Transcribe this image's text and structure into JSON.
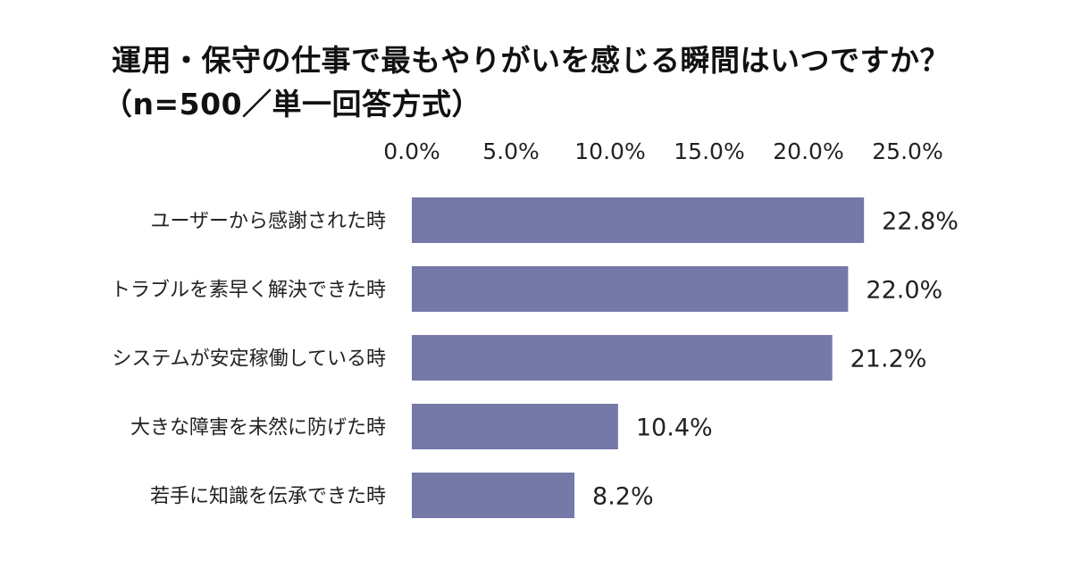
{
  "chart_data": {
    "type": "bar",
    "orientation": "horizontal",
    "title": "運用・保守の仕事で最もやりがいを感じる瞬間はいつですか？",
    "subtitle": "（n=500／単一回答方式）",
    "categories": [
      "ユーザーから感謝された時",
      "トラブルを素早く解決できた時",
      "システムが安定稼働している時",
      "大きな障害を未然に防げた時",
      "若手に知識を伝承できた時"
    ],
    "values": [
      22.8,
      22.0,
      21.2,
      10.4,
      8.2
    ],
    "data_labels": [
      "22.8%",
      "22.0%",
      "21.2%",
      "10.4%",
      "8.2%"
    ],
    "x_ticks": [
      "0.0%",
      "5.0%",
      "10.0%",
      "15.0%",
      "20.0%",
      "25.0%"
    ],
    "xlim": [
      0,
      25
    ],
    "x_axis_position": "top",
    "grid": false,
    "bar_color": "#7479a8"
  }
}
